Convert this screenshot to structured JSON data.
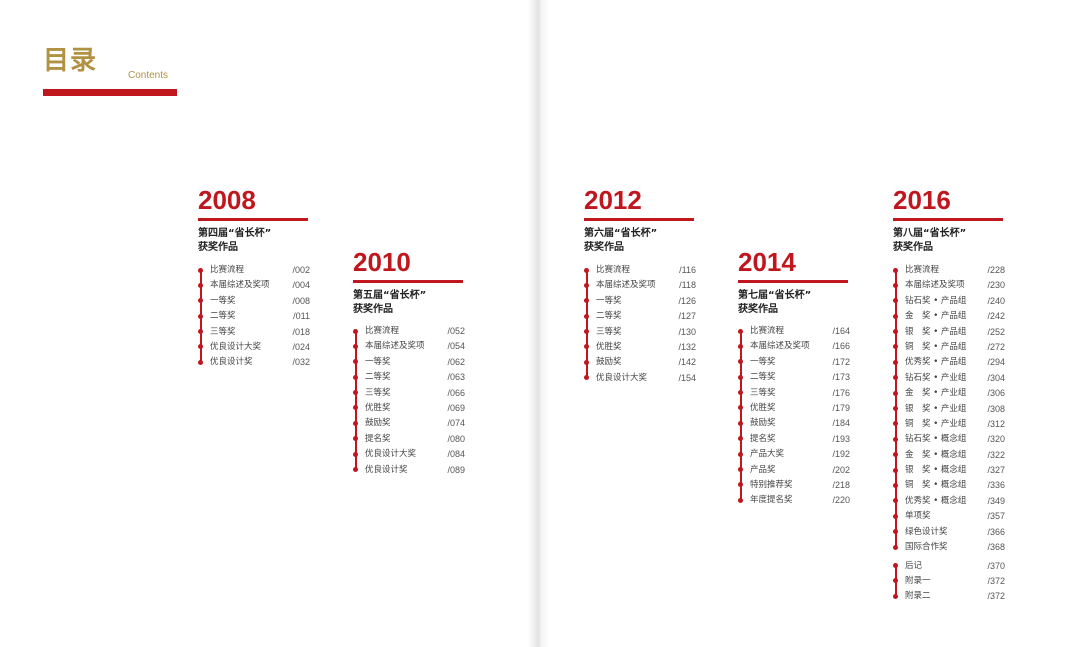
{
  "header": {
    "title": "目录",
    "subtitle": "Contents"
  },
  "sections": [
    {
      "year": "2008",
      "edition": "第四届“省长杯”",
      "edition2": "获奖作品",
      "groups": [
        [
          {
            "label": "比赛流程",
            "page": "/002"
          },
          {
            "label": "本届综述及奖项",
            "page": "/004"
          },
          {
            "label": "一等奖",
            "page": "/008"
          },
          {
            "label": "二等奖",
            "page": "/011"
          },
          {
            "label": "三等奖",
            "page": "/018"
          },
          {
            "label": "优良设计大奖",
            "page": "/024"
          },
          {
            "label": "优良设计奖",
            "page": "/032"
          }
        ]
      ]
    },
    {
      "year": "2010",
      "edition": "第五届“省长杯”",
      "edition2": "获奖作品",
      "groups": [
        [
          {
            "label": "比赛流程",
            "page": "/052"
          },
          {
            "label": "本届综述及奖项",
            "page": "/054"
          },
          {
            "label": "一等奖",
            "page": "/062"
          },
          {
            "label": "二等奖",
            "page": "/063"
          },
          {
            "label": "三等奖",
            "page": "/066"
          },
          {
            "label": "优胜奖",
            "page": "/069"
          },
          {
            "label": "鼓励奖",
            "page": "/074"
          },
          {
            "label": "提名奖",
            "page": "/080"
          },
          {
            "label": "优良设计大奖",
            "page": "/084"
          },
          {
            "label": "优良设计奖",
            "page": "/089"
          }
        ]
      ]
    },
    {
      "year": "2012",
      "edition": "第六届“省长杯”",
      "edition2": "获奖作品",
      "groups": [
        [
          {
            "label": "比赛流程",
            "page": "/116"
          },
          {
            "label": "本届综述及奖项",
            "page": "/118"
          },
          {
            "label": "一等奖",
            "page": "/126"
          },
          {
            "label": "二等奖",
            "page": "/127"
          },
          {
            "label": "三等奖",
            "page": "/130"
          },
          {
            "label": "优胜奖",
            "page": "/132"
          },
          {
            "label": "鼓励奖",
            "page": "/142"
          },
          {
            "label": "优良设计大奖",
            "page": "/154"
          }
        ]
      ]
    },
    {
      "year": "2014",
      "edition": "第七届“省长杯”",
      "edition2": "获奖作品",
      "groups": [
        [
          {
            "label": "比赛流程",
            "page": "/164"
          },
          {
            "label": "本届综述及奖项",
            "page": "/166"
          },
          {
            "label": "一等奖",
            "page": "/172"
          },
          {
            "label": "二等奖",
            "page": "/173"
          },
          {
            "label": "三等奖",
            "page": "/176"
          },
          {
            "label": "优胜奖",
            "page": "/179"
          },
          {
            "label": "鼓励奖",
            "page": "/184"
          },
          {
            "label": "提名奖",
            "page": "/193"
          },
          {
            "label": "产品大奖",
            "page": "/192"
          },
          {
            "label": "产品奖",
            "page": "/202"
          },
          {
            "label": "特别推荐奖",
            "page": "/218"
          },
          {
            "label": "年度提名奖",
            "page": "/220"
          }
        ]
      ]
    },
    {
      "year": "2016",
      "edition": "第八届“省长杯”",
      "edition2": "获奖作品",
      "groups": [
        [
          {
            "label": "比赛流程",
            "page": "/228"
          },
          {
            "label": "本届综述及奖项",
            "page": "/230"
          },
          {
            "label": "钻石奖 • 产品组",
            "page": "/240"
          },
          {
            "label": "金　奖 • 产品组",
            "page": "/242"
          },
          {
            "label": "银　奖 • 产品组",
            "page": "/252"
          },
          {
            "label": "铜　奖 • 产品组",
            "page": "/272"
          },
          {
            "label": "优秀奖 • 产品组",
            "page": "/294"
          },
          {
            "label": "钻石奖 • 产业组",
            "page": "/304"
          },
          {
            "label": "金　奖 • 产业组",
            "page": "/306"
          },
          {
            "label": "银　奖 • 产业组",
            "page": "/308"
          },
          {
            "label": "铜　奖 • 产业组",
            "page": "/312"
          },
          {
            "label": "钻石奖 • 概念组",
            "page": "/320"
          },
          {
            "label": "金　奖 • 概念组",
            "page": "/322"
          },
          {
            "label": "银　奖 • 概念组",
            "page": "/327"
          },
          {
            "label": "铜　奖 • 概念组",
            "page": "/336"
          },
          {
            "label": "优秀奖 • 概念组",
            "page": "/349"
          },
          {
            "label": "单项奖",
            "page": "/357"
          },
          {
            "label": "绿色设计奖",
            "page": "/366"
          },
          {
            "label": "国际合作奖",
            "page": "/368"
          }
        ],
        [
          {
            "label": "后记",
            "page": "/370"
          },
          {
            "label": "附录一",
            "page": "/372"
          },
          {
            "label": "附录二",
            "page": "/372"
          }
        ]
      ]
    }
  ]
}
